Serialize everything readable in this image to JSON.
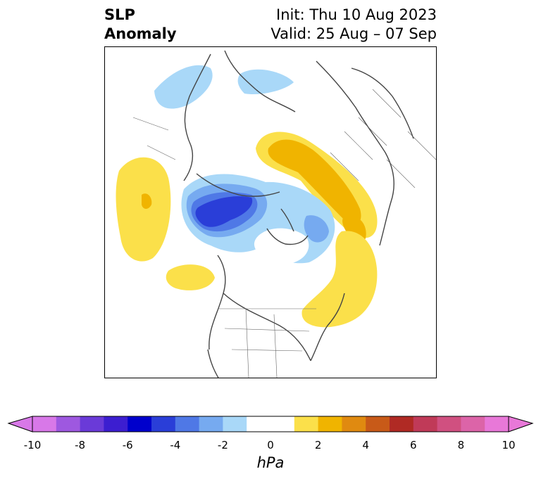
{
  "title": {
    "left_line1": "SLP",
    "left_line2": "Anomaly",
    "right_line1": "Init: Thu 10 Aug 2023",
    "right_line2": "Valid: 25 Aug – 07 Sep"
  },
  "colorbar": {
    "units": "hPa",
    "ticks": [
      "-10",
      "-8",
      "-6",
      "-4",
      "-2",
      "0",
      "2",
      "4",
      "6",
      "8",
      "10"
    ],
    "colors": [
      "#d878e8",
      "#9e58e0",
      "#6a3ad8",
      "#3c1ed0",
      "#0000cc",
      "#2a3ed8",
      "#4f78e6",
      "#76aaf0",
      "#a9d8f8",
      "#ffffff",
      "#ffffff",
      "#fbe04a",
      "#f0b400",
      "#e08a10",
      "#c85a18",
      "#b02a24",
      "#c03a58",
      "#d05080",
      "#dc64a8",
      "#e878d8"
    ],
    "extend_min_color": "#d878e8",
    "extend_max_color": "#e878d8"
  },
  "map": {
    "projection": "north polar stereographic",
    "fill_colors": {
      "light_blue": "#a9d8f8",
      "mid_blue": "#76aaf0",
      "blue": "#4f78e6",
      "dark_blue": "#2a3ed8",
      "yellow": "#fbe04a",
      "gold": "#f0b400"
    }
  }
}
